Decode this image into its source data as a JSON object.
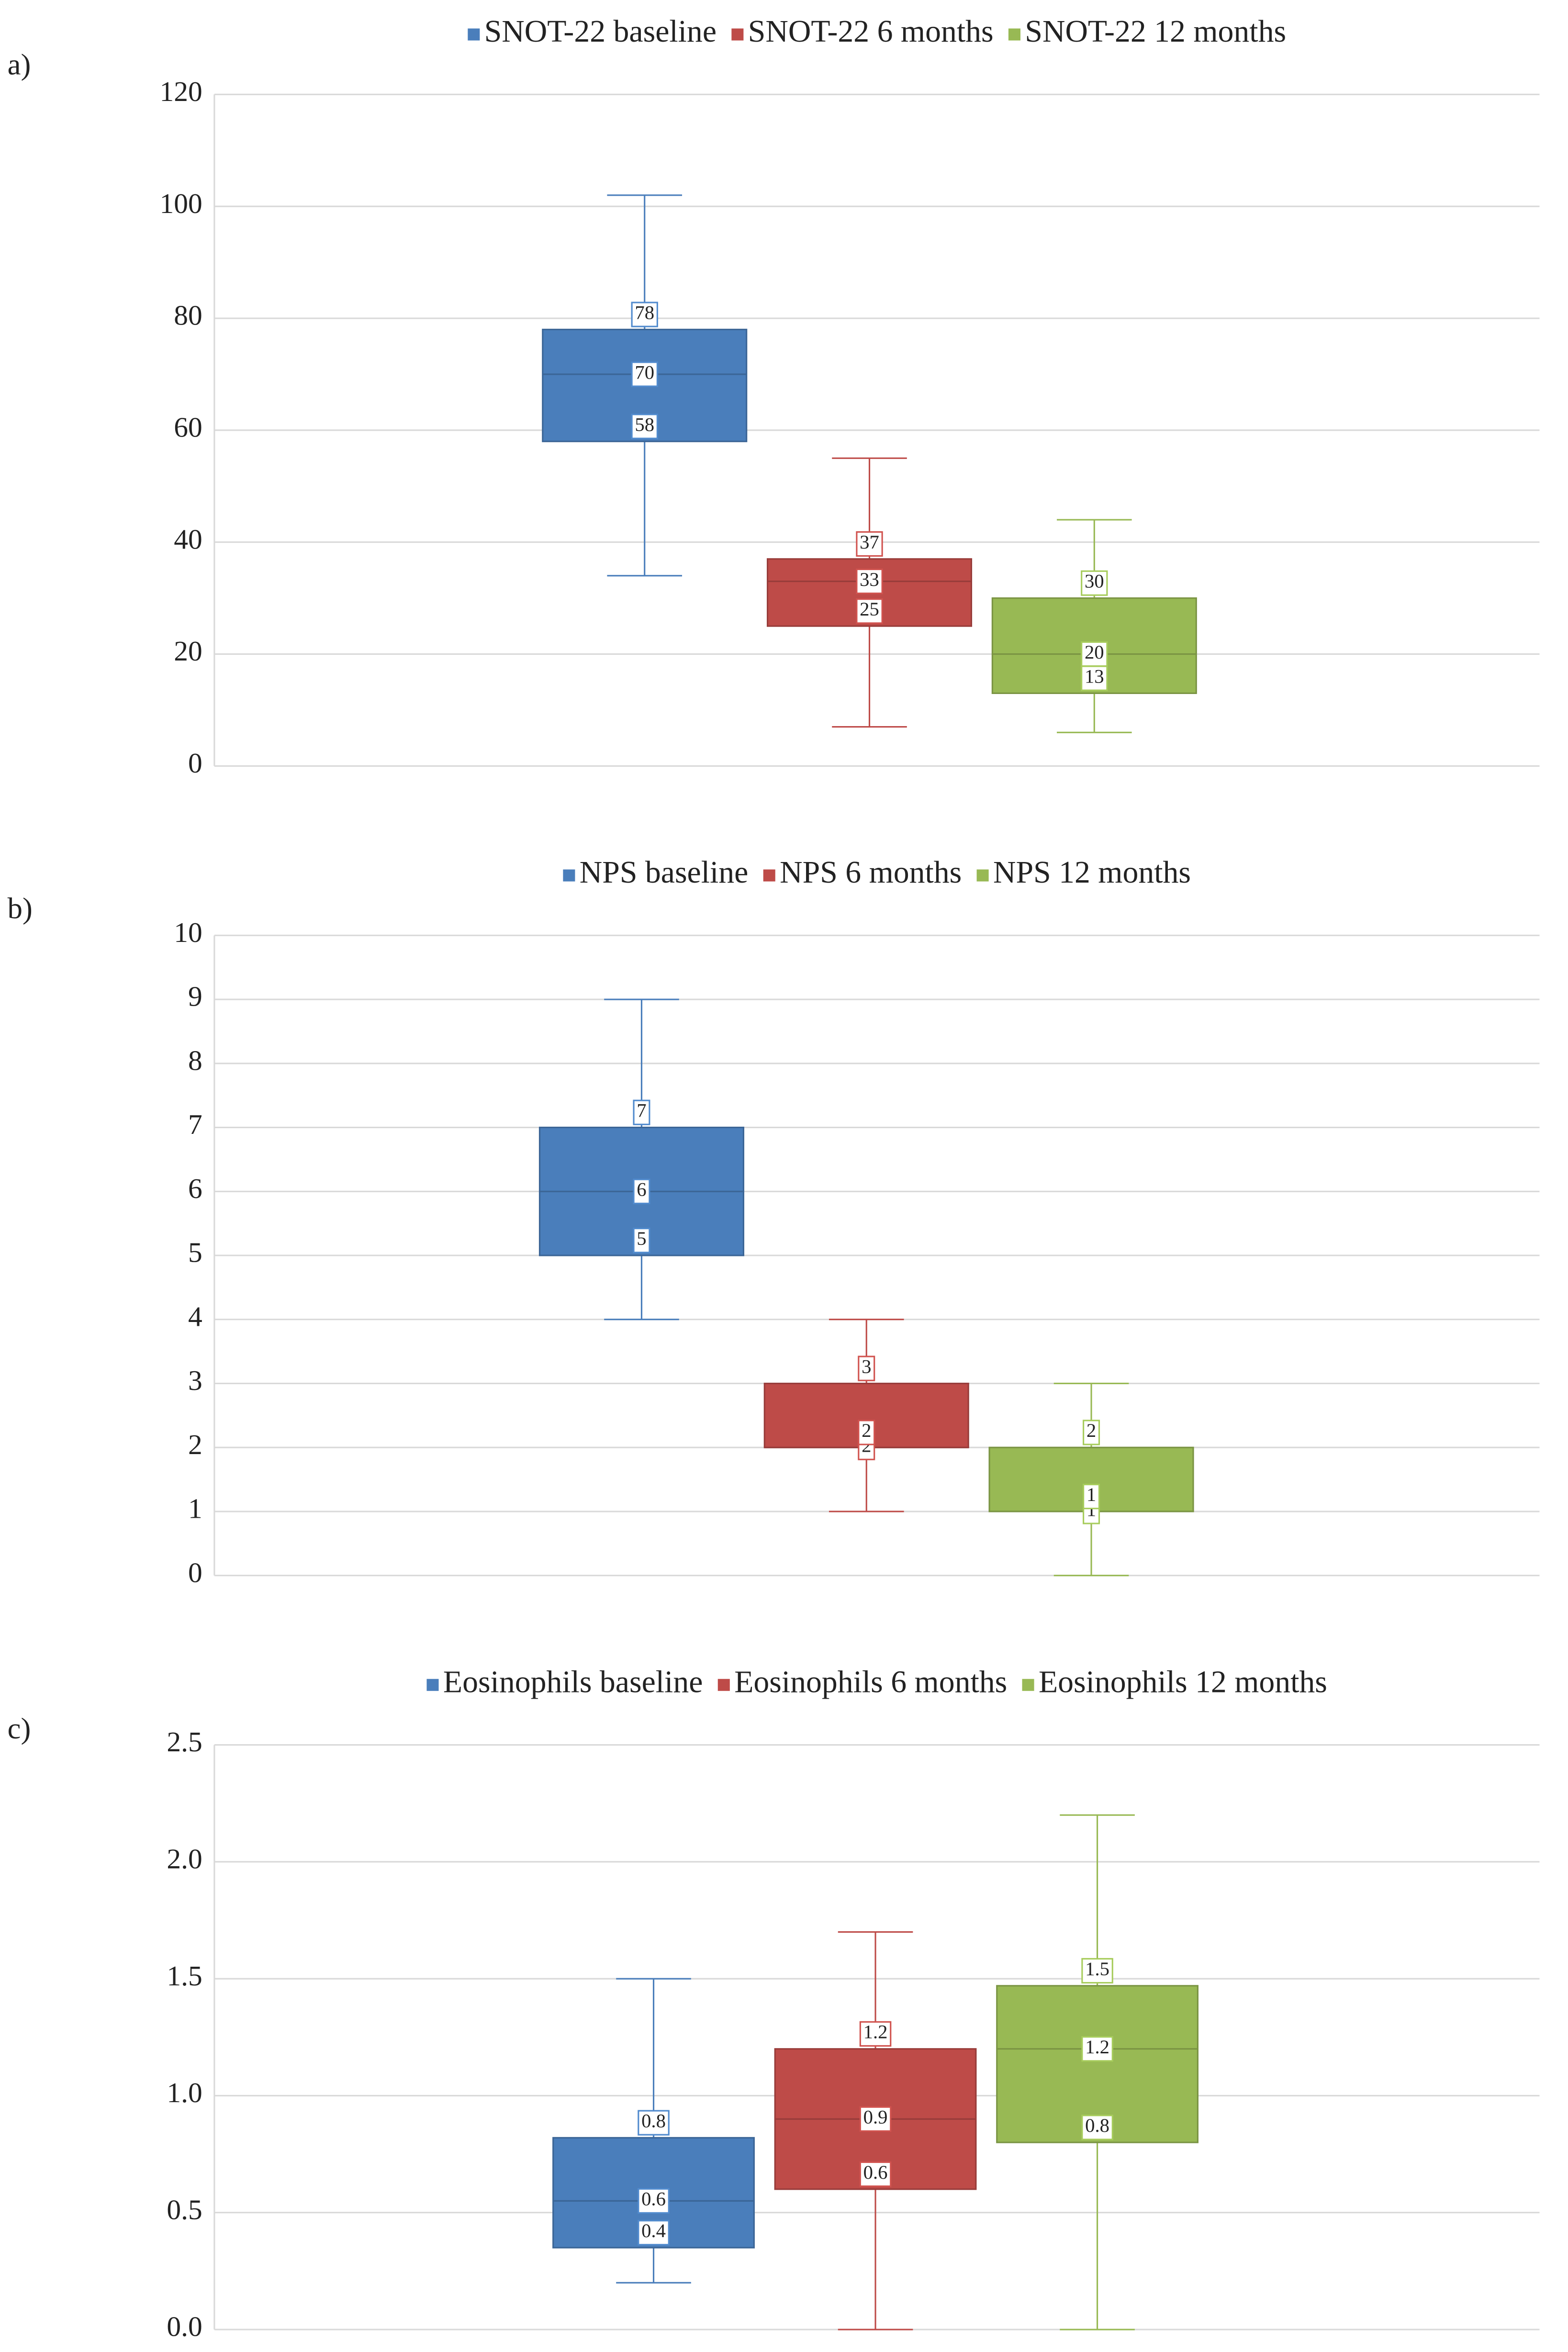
{
  "chart_data": [
    {
      "type": "box",
      "panel_label": "a)",
      "ylim": [
        0,
        120
      ],
      "yticks": [
        0,
        20,
        40,
        60,
        80,
        100,
        120
      ],
      "grid": true,
      "series": [
        {
          "name": "SNOT-22 baseline",
          "color": "#4a7ebb",
          "min": 34,
          "q1": 58,
          "median": 70,
          "q3": 78,
          "max": 102
        },
        {
          "name": "SNOT-22 6 months",
          "color": "#be4b48",
          "min": 7,
          "q1": 25,
          "median": 33,
          "q3": 37,
          "max": 55
        },
        {
          "name": "SNOT-22 12 months",
          "color": "#98b954",
          "min": 6,
          "q1": 13,
          "median": 20,
          "q3": 30,
          "max": 44
        }
      ]
    },
    {
      "type": "box",
      "panel_label": "b)",
      "ylim": [
        0,
        10
      ],
      "yticks": [
        0,
        1,
        2,
        3,
        4,
        5,
        6,
        7,
        8,
        9,
        10
      ],
      "grid": true,
      "series": [
        {
          "name": "NPS baseline",
          "color": "#4a7ebb",
          "min": 4,
          "q1": 5,
          "median": 6,
          "q3": 7,
          "max": 9
        },
        {
          "name": "NPS 6 months",
          "color": "#be4b48",
          "min": 1,
          "q1": 2,
          "median": 2,
          "q3": 3,
          "max": 4
        },
        {
          "name": "NPS 12 months",
          "color": "#98b954",
          "min": 0,
          "q1": 1,
          "median": 1,
          "q3": 2,
          "max": 3
        }
      ]
    },
    {
      "type": "box",
      "panel_label": "c)",
      "ylim": [
        0,
        2.5
      ],
      "yticks": [
        {
          "value": 0,
          "label": "0.0"
        },
        0.5,
        {
          "value": 1,
          "label": "1.0"
        },
        1.5,
        {
          "value": 2,
          "label": "2.0"
        },
        2.5
      ],
      "grid": true,
      "series": [
        {
          "name": "Eosinophils baseline",
          "color": "#4a7ebb",
          "min": 0.2,
          "q1": 0.35,
          "median": 0.55,
          "q3": 0.82,
          "max": 1.5,
          "value_labels": {
            "q1": "0.4",
            "median": "0.6",
            "q3": "0.8"
          }
        },
        {
          "name": "Eosinophils 6 months",
          "color": "#be4b48",
          "min": 0,
          "q1": 0.6,
          "median": 0.9,
          "q3": 1.2,
          "max": 1.7
        },
        {
          "name": "Eosinophils 12 months",
          "color": "#98b954",
          "min": 0,
          "q1": 0.8,
          "median": 1.2,
          "q3": 1.47,
          "max": 2.2,
          "value_labels": {
            "q3": "1.5"
          }
        }
      ]
    }
  ]
}
